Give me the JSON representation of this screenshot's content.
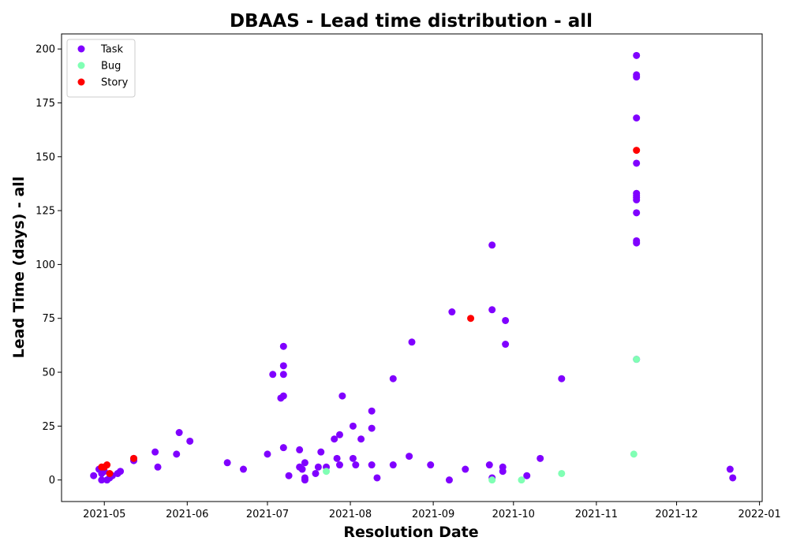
{
  "chart_data": {
    "type": "scatter",
    "title": "DBAAS - Lead time distribution - all",
    "xlabel": "Resolution Date",
    "ylabel": "Lead Time (days) - all",
    "xlim": [
      "2021-04-15",
      "2022-01-02"
    ],
    "ylim": [
      -10,
      207
    ],
    "x_ticks": [
      "2021-05",
      "2021-06",
      "2021-07",
      "2021-08",
      "2021-09",
      "2021-10",
      "2021-11",
      "2021-12",
      "2022-01"
    ],
    "y_ticks": [
      0,
      25,
      50,
      75,
      100,
      125,
      150,
      175,
      200
    ],
    "grid": false,
    "legend_position": "upper-left",
    "series": [
      {
        "name": "Task",
        "color": "#8000ff",
        "points": [
          [
            "2021-04-27",
            2
          ],
          [
            "2021-04-29",
            5
          ],
          [
            "2021-04-30",
            3
          ],
          [
            "2021-04-30",
            0
          ],
          [
            "2021-05-01",
            4
          ],
          [
            "2021-05-02",
            0
          ],
          [
            "2021-05-03",
            1
          ],
          [
            "2021-05-04",
            2
          ],
          [
            "2021-05-06",
            3
          ],
          [
            "2021-05-07",
            4
          ],
          [
            "2021-05-12",
            9
          ],
          [
            "2021-05-12",
            10
          ],
          [
            "2021-05-20",
            13
          ],
          [
            "2021-05-21",
            6
          ],
          [
            "2021-05-28",
            12
          ],
          [
            "2021-05-29",
            22
          ],
          [
            "2021-06-02",
            18
          ],
          [
            "2021-06-16",
            8
          ],
          [
            "2021-06-22",
            5
          ],
          [
            "2021-07-01",
            12
          ],
          [
            "2021-07-03",
            49
          ],
          [
            "2021-07-06",
            38
          ],
          [
            "2021-07-07",
            62
          ],
          [
            "2021-07-07",
            53
          ],
          [
            "2021-07-07",
            49
          ],
          [
            "2021-07-07",
            39
          ],
          [
            "2021-07-07",
            15
          ],
          [
            "2021-07-09",
            2
          ],
          [
            "2021-07-13",
            6
          ],
          [
            "2021-07-13",
            14
          ],
          [
            "2021-07-14",
            5
          ],
          [
            "2021-07-15",
            8
          ],
          [
            "2021-07-15",
            1
          ],
          [
            "2021-07-15",
            0
          ],
          [
            "2021-07-19",
            3
          ],
          [
            "2021-07-20",
            6
          ],
          [
            "2021-07-21",
            13
          ],
          [
            "2021-07-23",
            6
          ],
          [
            "2021-07-26",
            19
          ],
          [
            "2021-07-27",
            10
          ],
          [
            "2021-07-28",
            21
          ],
          [
            "2021-07-28",
            7
          ],
          [
            "2021-07-29",
            39
          ],
          [
            "2021-08-02",
            25
          ],
          [
            "2021-08-02",
            10
          ],
          [
            "2021-08-03",
            7
          ],
          [
            "2021-08-05",
            19
          ],
          [
            "2021-08-09",
            32
          ],
          [
            "2021-08-09",
            24
          ],
          [
            "2021-08-09",
            7
          ],
          [
            "2021-08-11",
            1
          ],
          [
            "2021-08-17",
            47
          ],
          [
            "2021-08-17",
            7
          ],
          [
            "2021-08-23",
            11
          ],
          [
            "2021-08-24",
            64
          ],
          [
            "2021-08-31",
            7
          ],
          [
            "2021-09-07",
            0
          ],
          [
            "2021-09-08",
            78
          ],
          [
            "2021-09-13",
            5
          ],
          [
            "2021-09-22",
            7
          ],
          [
            "2021-09-23",
            109
          ],
          [
            "2021-09-23",
            79
          ],
          [
            "2021-09-23",
            1
          ],
          [
            "2021-09-27",
            6
          ],
          [
            "2021-09-27",
            4
          ],
          [
            "2021-09-28",
            74
          ],
          [
            "2021-09-28",
            63
          ],
          [
            "2021-10-06",
            2
          ],
          [
            "2021-10-11",
            10
          ],
          [
            "2021-10-19",
            47
          ],
          [
            "2021-11-16",
            197
          ],
          [
            "2021-11-16",
            188
          ],
          [
            "2021-11-16",
            187
          ],
          [
            "2021-11-16",
            168
          ],
          [
            "2021-11-16",
            147
          ],
          [
            "2021-11-16",
            133
          ],
          [
            "2021-11-16",
            132
          ],
          [
            "2021-11-16",
            131
          ],
          [
            "2021-11-16",
            130
          ],
          [
            "2021-11-16",
            124
          ],
          [
            "2021-11-16",
            111
          ],
          [
            "2021-11-16",
            110
          ],
          [
            "2021-11-16",
            56
          ],
          [
            "2021-12-21",
            5
          ],
          [
            "2021-12-22",
            1
          ]
        ]
      },
      {
        "name": "Bug",
        "color": "#80ffb4",
        "points": [
          [
            "2021-07-23",
            4
          ],
          [
            "2021-09-23",
            0
          ],
          [
            "2021-10-04",
            0
          ],
          [
            "2021-10-19",
            3
          ],
          [
            "2021-11-15",
            12
          ],
          [
            "2021-11-16",
            56
          ]
        ]
      },
      {
        "name": "Story",
        "color": "#ff0000",
        "points": [
          [
            "2021-04-30",
            6
          ],
          [
            "2021-05-01",
            6
          ],
          [
            "2021-05-02",
            7
          ],
          [
            "2021-05-03",
            3
          ],
          [
            "2021-05-12",
            10
          ],
          [
            "2021-09-15",
            75
          ],
          [
            "2021-11-16",
            153
          ]
        ]
      }
    ]
  }
}
